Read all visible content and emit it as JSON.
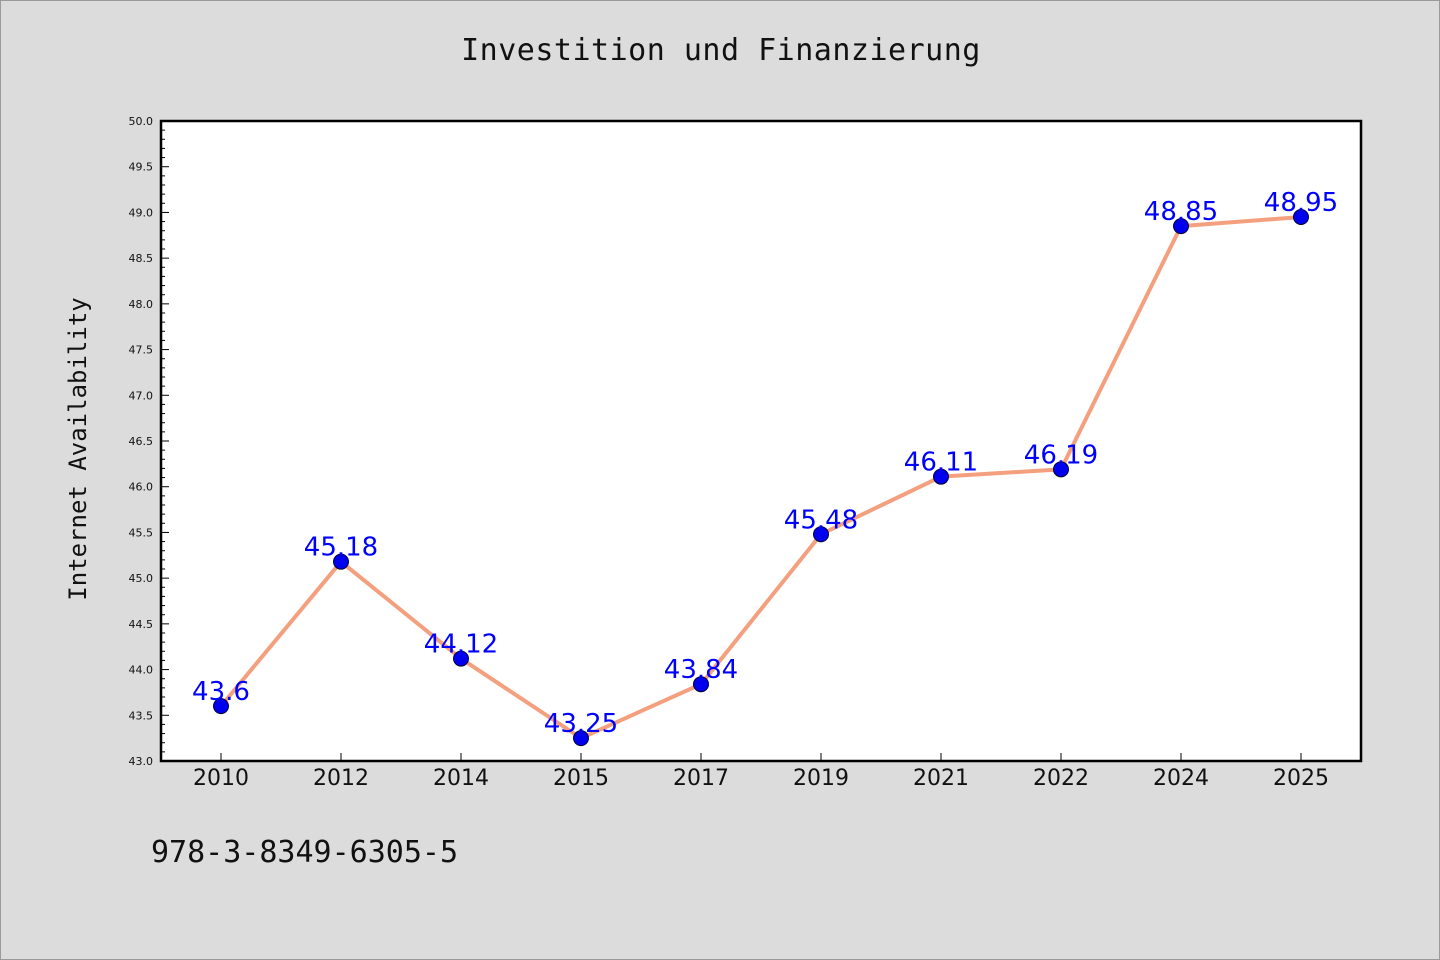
{
  "chart_data": {
    "type": "line",
    "title": "Investition und Finanzierung",
    "xlabel": "",
    "ylabel": "Internet Availability",
    "categories": [
      "2010",
      "2012",
      "2014",
      "2015",
      "2017",
      "2019",
      "2021",
      "2022",
      "2024",
      "2025"
    ],
    "series": [
      {
        "values": [
          43.6,
          45.18,
          44.12,
          43.25,
          43.84,
          45.48,
          46.11,
          46.19,
          48.85,
          48.95
        ],
        "labels": [
          "43.6",
          "45.18",
          "44.12",
          "43.25",
          "43.84",
          "45.48",
          "46.11",
          "46.19",
          "48.85",
          "48.95"
        ],
        "line_color": "#f4a07e",
        "marker_color": "#0000ee",
        "label_color": "#0000ff"
      }
    ],
    "ylim": [
      43.0,
      50.0
    ],
    "yticks": [
      "43.0",
      "43.5",
      "44.0",
      "44.5",
      "45.0",
      "45.5",
      "46.0",
      "46.5",
      "47.0",
      "47.5",
      "48.0",
      "48.5",
      "49.0",
      "49.5",
      "50.0"
    ],
    "grid": false,
    "legend": "none",
    "background_color": "#dcdcdc",
    "plot_background": "#ffffff"
  },
  "footnote": "978-3-8349-6305-5"
}
